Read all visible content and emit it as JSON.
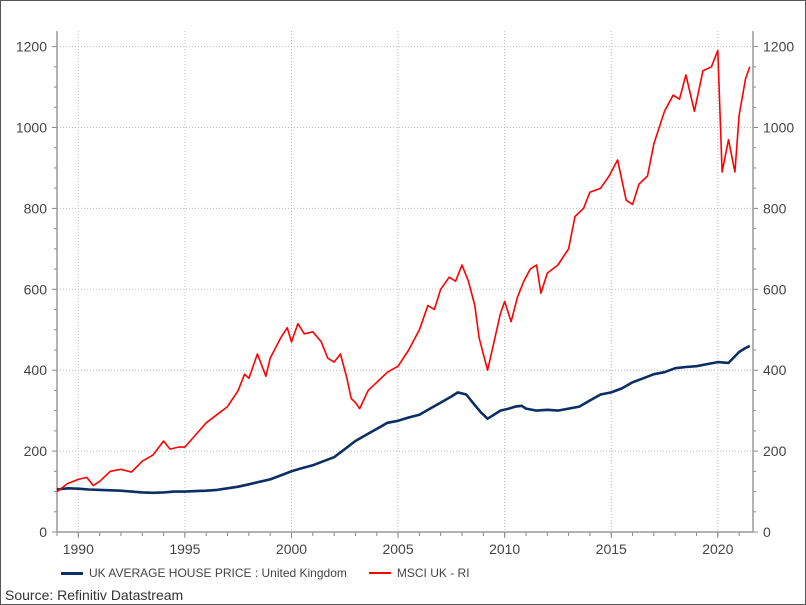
{
  "chart_data": {
    "type": "line",
    "title": "",
    "xlabel": "",
    "ylabel": "",
    "xlim": [
      1989.0,
      2021.65
    ],
    "ylim": [
      0,
      1240
    ],
    "x_ticks": [
      "1990",
      "1995",
      "2000",
      "2005",
      "2010",
      "2015",
      "2020"
    ],
    "y_ticks": [
      "0",
      "200",
      "400",
      "600",
      "800",
      "1000",
      "1200"
    ],
    "grid": true,
    "legend_position": "bottom",
    "series": [
      {
        "name": "UK AVERAGE HOUSE PRICE : United Kingdom",
        "color": "#0b2f63",
        "points": [
          [
            1989.0,
            105
          ],
          [
            1989.5,
            108
          ],
          [
            1990,
            107
          ],
          [
            1990.5,
            105
          ],
          [
            1991,
            104
          ],
          [
            1991.5,
            103
          ],
          [
            1992,
            102
          ],
          [
            1992.5,
            100
          ],
          [
            1993,
            98
          ],
          [
            1993.5,
            97
          ],
          [
            1994,
            98
          ],
          [
            1994.5,
            100
          ],
          [
            1995,
            100
          ],
          [
            1995.5,
            101
          ],
          [
            1996,
            102
          ],
          [
            1996.5,
            104
          ],
          [
            1997,
            108
          ],
          [
            1997.5,
            112
          ],
          [
            1998,
            118
          ],
          [
            1998.5,
            124
          ],
          [
            1999,
            130
          ],
          [
            1999.5,
            140
          ],
          [
            2000,
            150
          ],
          [
            2000.5,
            158
          ],
          [
            2001,
            165
          ],
          [
            2001.5,
            175
          ],
          [
            2002,
            185
          ],
          [
            2002.5,
            205
          ],
          [
            2003,
            225
          ],
          [
            2003.5,
            240
          ],
          [
            2004,
            255
          ],
          [
            2004.5,
            270
          ],
          [
            2005,
            275
          ],
          [
            2005.5,
            283
          ],
          [
            2006,
            290
          ],
          [
            2006.5,
            305
          ],
          [
            2007,
            320
          ],
          [
            2007.5,
            335
          ],
          [
            2007.8,
            345
          ],
          [
            2008.2,
            340
          ],
          [
            2008.5,
            320
          ],
          [
            2008.9,
            295
          ],
          [
            2009.2,
            280
          ],
          [
            2009.5,
            290
          ],
          [
            2009.8,
            300
          ],
          [
            2010.2,
            305
          ],
          [
            2010.5,
            310
          ],
          [
            2010.8,
            312
          ],
          [
            2011,
            305
          ],
          [
            2011.5,
            300
          ],
          [
            2012,
            302
          ],
          [
            2012.5,
            300
          ],
          [
            2013,
            305
          ],
          [
            2013.5,
            310
          ],
          [
            2014,
            325
          ],
          [
            2014.5,
            340
          ],
          [
            2015,
            345
          ],
          [
            2015.5,
            355
          ],
          [
            2016,
            370
          ],
          [
            2016.5,
            380
          ],
          [
            2017,
            390
          ],
          [
            2017.5,
            395
          ],
          [
            2018,
            405
          ],
          [
            2018.5,
            408
          ],
          [
            2019,
            410
          ],
          [
            2019.5,
            415
          ],
          [
            2020,
            420
          ],
          [
            2020.5,
            418
          ],
          [
            2021,
            445
          ],
          [
            2021.3,
            455
          ],
          [
            2021.5,
            460
          ]
        ]
      },
      {
        "name": "MSCI UK - RI",
        "color": "#ff0000",
        "points": [
          [
            1989.0,
            100
          ],
          [
            1989.5,
            120
          ],
          [
            1990,
            130
          ],
          [
            1990.4,
            135
          ],
          [
            1990.7,
            115
          ],
          [
            1991,
            125
          ],
          [
            1991.5,
            150
          ],
          [
            1992,
            155
          ],
          [
            1992.5,
            148
          ],
          [
            1993,
            175
          ],
          [
            1993.5,
            190
          ],
          [
            1994,
            225
          ],
          [
            1994.3,
            205
          ],
          [
            1994.7,
            210
          ],
          [
            1995,
            210
          ],
          [
            1995.5,
            240
          ],
          [
            1996,
            270
          ],
          [
            1996.5,
            290
          ],
          [
            1997,
            310
          ],
          [
            1997.5,
            350
          ],
          [
            1997.8,
            390
          ],
          [
            1998,
            380
          ],
          [
            1998.4,
            440
          ],
          [
            1998.8,
            385
          ],
          [
            1999,
            430
          ],
          [
            1999.5,
            480
          ],
          [
            1999.8,
            505
          ],
          [
            2000,
            470
          ],
          [
            2000.3,
            515
          ],
          [
            2000.6,
            490
          ],
          [
            2001,
            495
          ],
          [
            2001.4,
            470
          ],
          [
            2001.7,
            430
          ],
          [
            2002,
            420
          ],
          [
            2002.3,
            440
          ],
          [
            2002.6,
            380
          ],
          [
            2002.8,
            330
          ],
          [
            2003,
            320
          ],
          [
            2003.2,
            305
          ],
          [
            2003.6,
            350
          ],
          [
            2004,
            370
          ],
          [
            2004.5,
            395
          ],
          [
            2005,
            410
          ],
          [
            2005.5,
            450
          ],
          [
            2006,
            500
          ],
          [
            2006.4,
            560
          ],
          [
            2006.7,
            550
          ],
          [
            2007,
            600
          ],
          [
            2007.4,
            630
          ],
          [
            2007.7,
            620
          ],
          [
            2008,
            660
          ],
          [
            2008.3,
            620
          ],
          [
            2008.6,
            560
          ],
          [
            2008.8,
            480
          ],
          [
            2009,
            440
          ],
          [
            2009.2,
            400
          ],
          [
            2009.5,
            470
          ],
          [
            2009.8,
            540
          ],
          [
            2010,
            570
          ],
          [
            2010.3,
            520
          ],
          [
            2010.6,
            580
          ],
          [
            2010.9,
            620
          ],
          [
            2011.2,
            650
          ],
          [
            2011.5,
            660
          ],
          [
            2011.7,
            590
          ],
          [
            2012,
            640
          ],
          [
            2012.5,
            660
          ],
          [
            2013,
            700
          ],
          [
            2013.3,
            780
          ],
          [
            2013.7,
            800
          ],
          [
            2014,
            840
          ],
          [
            2014.5,
            850
          ],
          [
            2014.9,
            880
          ],
          [
            2015.3,
            920
          ],
          [
            2015.7,
            820
          ],
          [
            2016,
            810
          ],
          [
            2016.3,
            860
          ],
          [
            2016.7,
            880
          ],
          [
            2017,
            960
          ],
          [
            2017.5,
            1040
          ],
          [
            2017.9,
            1080
          ],
          [
            2018.2,
            1070
          ],
          [
            2018.5,
            1130
          ],
          [
            2018.9,
            1040
          ],
          [
            2019.3,
            1140
          ],
          [
            2019.7,
            1150
          ],
          [
            2020,
            1190
          ],
          [
            2020.2,
            890
          ],
          [
            2020.5,
            970
          ],
          [
            2020.8,
            890
          ],
          [
            2021,
            1030
          ],
          [
            2021.3,
            1120
          ],
          [
            2021.5,
            1150
          ]
        ]
      }
    ],
    "source": "Source: Refinitiv Datastream"
  }
}
